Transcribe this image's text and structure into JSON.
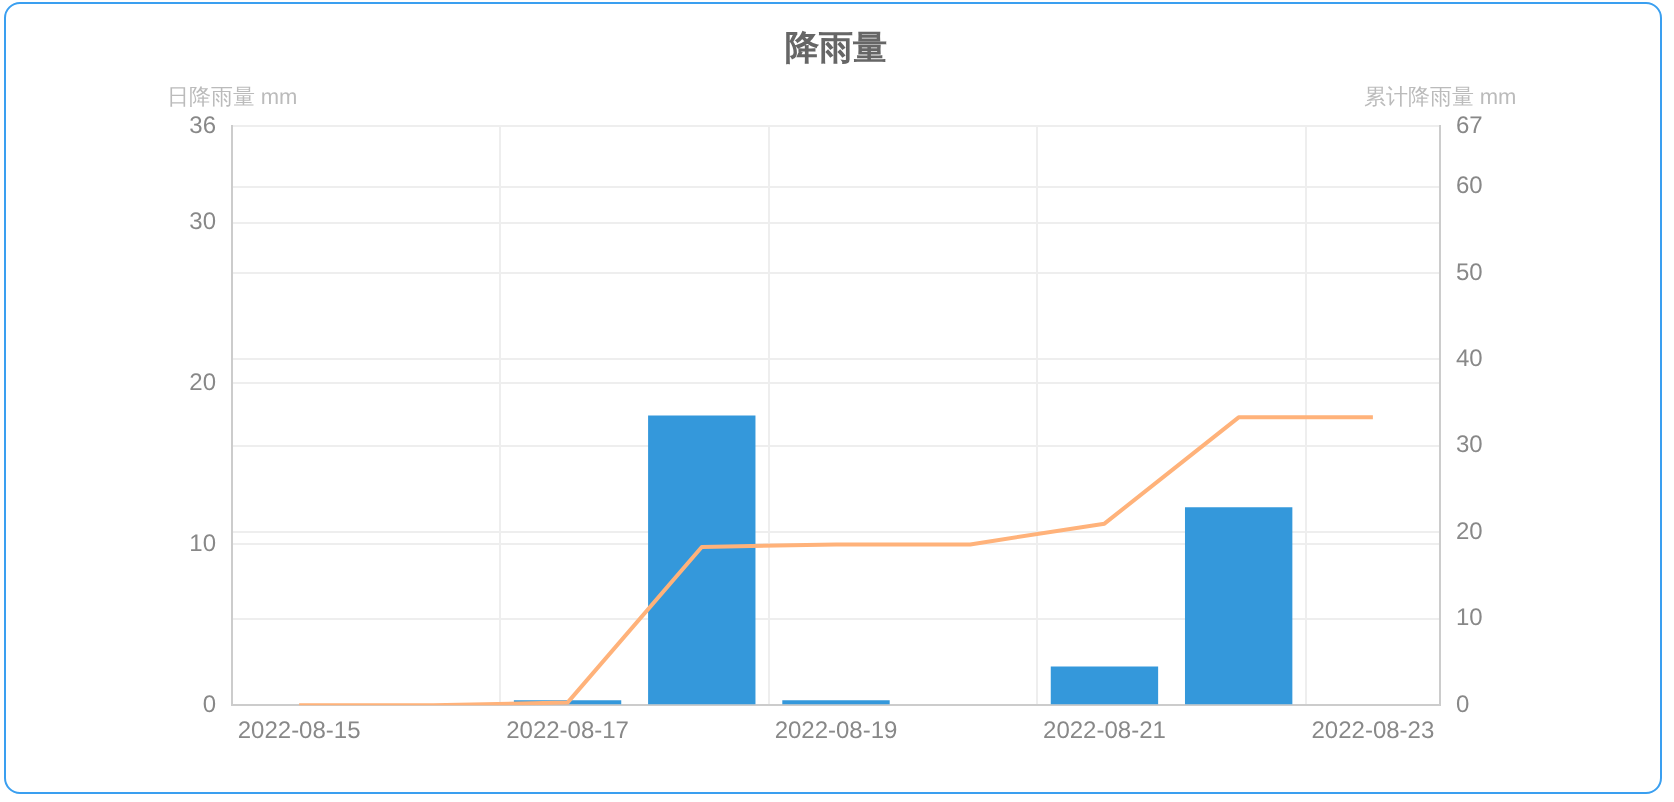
{
  "chart_data": {
    "type": "bar",
    "title": "降雨量",
    "ylabel": "日降雨量 mm",
    "y2label": "累计降雨量 mm",
    "categories": [
      "2022-08-15",
      null,
      "2022-08-17",
      null,
      "2022-08-19",
      null,
      "2022-08-21",
      null,
      "2022-08-23"
    ],
    "series": [
      {
        "color": "#3498db",
        "values": [
          0,
          0,
          0.3,
          18,
          0.3,
          0,
          2.4,
          12.3,
          0
        ]
      },
      {
        "type": "line",
        "axis": "y2",
        "color": "#ffb27a",
        "values": [
          0,
          0,
          0.3,
          18.3,
          18.6,
          18.6,
          21,
          33.3,
          33.3
        ]
      }
    ],
    "ylim": [
      0,
      36
    ],
    "yticks": [
      0,
      10,
      20,
      30,
      36
    ],
    "y2lim": [
      0,
      67
    ],
    "y2ticks": [
      0,
      10,
      20,
      30,
      40,
      50,
      60,
      67
    ],
    "grid": true,
    "legend": false,
    "marker": "none",
    "line_style": "solid"
  }
}
